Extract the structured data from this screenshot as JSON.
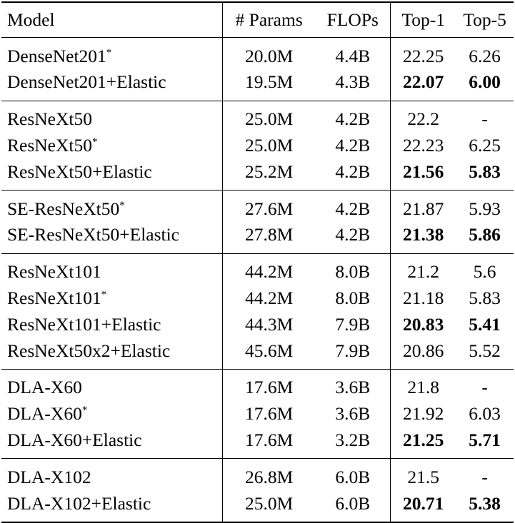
{
  "header": {
    "model": "Model",
    "params": "# Params",
    "flops": "FLOPs",
    "top1": "Top-1",
    "top5": "Top-5"
  },
  "groups": [
    {
      "rows": [
        {
          "model": "DenseNet201",
          "mark": "*",
          "params": "20.0M",
          "flops": "4.4B",
          "top1": "22.25",
          "top5": "6.26",
          "best": false
        },
        {
          "model": "DenseNet201+Elastic",
          "mark": "",
          "params": "19.5M",
          "flops": "4.3B",
          "top1": "22.07",
          "top5": "6.00",
          "best": true
        }
      ]
    },
    {
      "rows": [
        {
          "model": "ResNeXt50",
          "mark": "",
          "params": "25.0M",
          "flops": "4.2B",
          "top1": "22.2",
          "top5": "-",
          "best": false
        },
        {
          "model": "ResNeXt50",
          "mark": "*",
          "params": "25.0M",
          "flops": "4.2B",
          "top1": "22.23",
          "top5": "6.25",
          "best": false
        },
        {
          "model": "ResNeXt50+Elastic",
          "mark": "",
          "params": "25.2M",
          "flops": "4.2B",
          "top1": "21.56",
          "top5": "5.83",
          "best": true
        }
      ]
    },
    {
      "rows": [
        {
          "model": "SE-ResNeXt50",
          "mark": "*",
          "params": "27.6M",
          "flops": "4.2B",
          "top1": "21.87",
          "top5": "5.93",
          "best": false
        },
        {
          "model": "SE-ResNeXt50+Elastic",
          "mark": "",
          "params": "27.8M",
          "flops": "4.2B",
          "top1": "21.38",
          "top5": "5.86",
          "best": true
        }
      ]
    },
    {
      "rows": [
        {
          "model": "ResNeXt101",
          "mark": "",
          "params": "44.2M",
          "flops": "8.0B",
          "top1": "21.2",
          "top5": "5.6",
          "best": false
        },
        {
          "model": "ResNeXt101",
          "mark": "*",
          "params": "44.2M",
          "flops": "8.0B",
          "top1": "21.18",
          "top5": "5.83",
          "best": false
        },
        {
          "model": "ResNeXt101+Elastic",
          "mark": "",
          "params": "44.3M",
          "flops": "7.9B",
          "top1": "20.83",
          "top5": "5.41",
          "best": true
        },
        {
          "model": "ResNeXt50x2+Elastic",
          "mark": "",
          "params": "45.6M",
          "flops": "7.9B",
          "top1": "20.86",
          "top5": "5.52",
          "best": false
        }
      ]
    },
    {
      "rows": [
        {
          "model": "DLA-X60",
          "mark": "",
          "params": "17.6M",
          "flops": "3.6B",
          "top1": "21.8",
          "top5": "-",
          "best": false
        },
        {
          "model": "DLA-X60",
          "mark": "*",
          "params": "17.6M",
          "flops": "3.6B",
          "top1": "21.92",
          "top5": "6.03",
          "best": false
        },
        {
          "model": "DLA-X60+Elastic",
          "mark": "",
          "params": "17.6M",
          "flops": "3.2B",
          "top1": "21.25",
          "top5": "5.71",
          "best": true
        }
      ]
    },
    {
      "rows": [
        {
          "model": "DLA-X102",
          "mark": "",
          "params": "26.8M",
          "flops": "6.0B",
          "top1": "21.5",
          "top5": "-",
          "best": false
        },
        {
          "model": "DLA-X102+Elastic",
          "mark": "",
          "params": "25.0M",
          "flops": "6.0B",
          "top1": "20.71",
          "top5": "5.38",
          "best": true
        }
      ]
    }
  ]
}
